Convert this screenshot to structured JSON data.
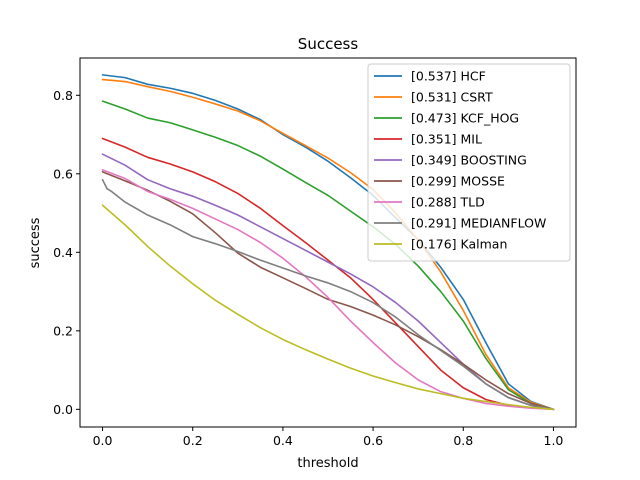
{
  "chart_data": {
    "type": "line",
    "title": "Success",
    "xlabel": "threshold",
    "ylabel": "success",
    "xlim": [
      -0.05,
      1.05
    ],
    "ylim": [
      -0.045,
      0.895
    ],
    "xticks": [
      0.0,
      0.2,
      0.4,
      0.6,
      0.8,
      1.0
    ],
    "yticks": [
      0.0,
      0.2,
      0.4,
      0.6,
      0.8
    ],
    "xtick_labels": [
      "0.0",
      "0.2",
      "0.4",
      "0.6",
      "0.8",
      "1.0"
    ],
    "ytick_labels": [
      "0.0",
      "0.2",
      "0.4",
      "0.6",
      "0.8"
    ],
    "grid": false,
    "legend_position": "top-right",
    "series": [
      {
        "name": "[0.537] HCF",
        "color": "#1f77b4",
        "x": [
          0.0,
          0.05,
          0.1,
          0.15,
          0.2,
          0.25,
          0.3,
          0.35,
          0.4,
          0.45,
          0.5,
          0.55,
          0.6,
          0.65,
          0.7,
          0.75,
          0.8,
          0.85,
          0.9,
          0.95,
          1.0
        ],
        "values": [
          0.852,
          0.845,
          0.828,
          0.818,
          0.805,
          0.787,
          0.765,
          0.738,
          0.7,
          0.668,
          0.632,
          0.59,
          0.545,
          0.488,
          0.432,
          0.362,
          0.28,
          0.17,
          0.065,
          0.02,
          0.0
        ]
      },
      {
        "name": "[0.531] CSRT",
        "color": "#ff7f0e",
        "x": [
          0.0,
          0.05,
          0.1,
          0.15,
          0.2,
          0.25,
          0.3,
          0.35,
          0.4,
          0.45,
          0.5,
          0.55,
          0.6,
          0.65,
          0.7,
          0.75,
          0.8,
          0.85,
          0.9,
          0.95,
          1.0
        ],
        "values": [
          0.84,
          0.835,
          0.822,
          0.81,
          0.795,
          0.778,
          0.76,
          0.735,
          0.703,
          0.672,
          0.64,
          0.603,
          0.56,
          0.5,
          0.432,
          0.35,
          0.252,
          0.14,
          0.055,
          0.018,
          0.0
        ]
      },
      {
        "name": "[0.473] KCF_HOG",
        "color": "#2ca02c",
        "x": [
          0.0,
          0.05,
          0.1,
          0.15,
          0.2,
          0.25,
          0.3,
          0.35,
          0.4,
          0.45,
          0.5,
          0.55,
          0.6,
          0.65,
          0.7,
          0.75,
          0.8,
          0.85,
          0.9,
          0.95,
          1.0
        ],
        "values": [
          0.785,
          0.765,
          0.742,
          0.73,
          0.712,
          0.693,
          0.672,
          0.645,
          0.612,
          0.578,
          0.545,
          0.505,
          0.465,
          0.42,
          0.365,
          0.3,
          0.225,
          0.13,
          0.05,
          0.015,
          0.0
        ]
      },
      {
        "name": "[0.351] MIL",
        "color": "#d62728",
        "x": [
          0.0,
          0.05,
          0.1,
          0.15,
          0.2,
          0.25,
          0.3,
          0.35,
          0.4,
          0.45,
          0.5,
          0.55,
          0.6,
          0.65,
          0.7,
          0.75,
          0.8,
          0.85,
          0.9,
          0.95,
          1.0
        ],
        "values": [
          0.69,
          0.668,
          0.642,
          0.625,
          0.605,
          0.58,
          0.55,
          0.512,
          0.468,
          0.425,
          0.38,
          0.335,
          0.28,
          0.22,
          0.16,
          0.1,
          0.055,
          0.025,
          0.01,
          0.004,
          0.0
        ]
      },
      {
        "name": "[0.349] BOOSTING",
        "color": "#9467bd",
        "x": [
          0.0,
          0.05,
          0.1,
          0.15,
          0.2,
          0.25,
          0.3,
          0.35,
          0.4,
          0.45,
          0.5,
          0.55,
          0.6,
          0.65,
          0.7,
          0.75,
          0.8,
          0.85,
          0.9,
          0.95,
          1.0
        ],
        "values": [
          0.65,
          0.622,
          0.585,
          0.562,
          0.543,
          0.52,
          0.495,
          0.465,
          0.435,
          0.405,
          0.375,
          0.345,
          0.312,
          0.272,
          0.225,
          0.17,
          0.115,
          0.065,
          0.03,
          0.01,
          0.0
        ]
      },
      {
        "name": "[0.299] MOSSE",
        "color": "#8c564b",
        "x": [
          0.0,
          0.05,
          0.1,
          0.15,
          0.2,
          0.25,
          0.3,
          0.35,
          0.4,
          0.45,
          0.5,
          0.55,
          0.6,
          0.65,
          0.7,
          0.75,
          0.8,
          0.85,
          0.9,
          0.95,
          1.0
        ],
        "values": [
          0.605,
          0.582,
          0.558,
          0.53,
          0.498,
          0.45,
          0.398,
          0.362,
          0.335,
          0.308,
          0.28,
          0.262,
          0.24,
          0.215,
          0.185,
          0.152,
          0.115,
          0.075,
          0.04,
          0.015,
          0.0
        ]
      },
      {
        "name": "[0.288] TLD",
        "color": "#e377c2",
        "x": [
          0.0,
          0.05,
          0.1,
          0.15,
          0.2,
          0.25,
          0.3,
          0.35,
          0.4,
          0.45,
          0.5,
          0.55,
          0.6,
          0.65,
          0.7,
          0.75,
          0.8,
          0.85,
          0.9,
          0.95,
          1.0
        ],
        "values": [
          0.61,
          0.588,
          0.555,
          0.535,
          0.512,
          0.485,
          0.458,
          0.425,
          0.385,
          0.338,
          0.285,
          0.225,
          0.17,
          0.118,
          0.075,
          0.045,
          0.028,
          0.015,
          0.008,
          0.003,
          0.0
        ]
      },
      {
        "name": "[0.291] MEDIANFLOW",
        "color": "#7f7f7f",
        "x": [
          0.0,
          0.01,
          0.02,
          0.05,
          0.1,
          0.15,
          0.2,
          0.25,
          0.3,
          0.35,
          0.4,
          0.45,
          0.5,
          0.55,
          0.6,
          0.65,
          0.7,
          0.75,
          0.8,
          0.85,
          0.9,
          0.95,
          1.0
        ],
        "values": [
          0.585,
          0.562,
          0.555,
          0.528,
          0.495,
          0.47,
          0.44,
          0.422,
          0.402,
          0.38,
          0.36,
          0.34,
          0.322,
          0.3,
          0.272,
          0.235,
          0.19,
          0.15,
          0.11,
          0.065,
          0.03,
          0.01,
          0.0
        ]
      },
      {
        "name": "[0.176] Kalman",
        "color": "#bcbd22",
        "x": [
          0.0,
          0.05,
          0.1,
          0.15,
          0.2,
          0.25,
          0.3,
          0.35,
          0.4,
          0.45,
          0.5,
          0.55,
          0.6,
          0.65,
          0.7,
          0.75,
          0.8,
          0.85,
          0.9,
          0.95,
          1.0
        ],
        "values": [
          0.52,
          0.47,
          0.415,
          0.365,
          0.32,
          0.278,
          0.242,
          0.208,
          0.178,
          0.152,
          0.128,
          0.105,
          0.085,
          0.068,
          0.052,
          0.04,
          0.028,
          0.02,
          0.012,
          0.005,
          0.0
        ]
      }
    ]
  }
}
